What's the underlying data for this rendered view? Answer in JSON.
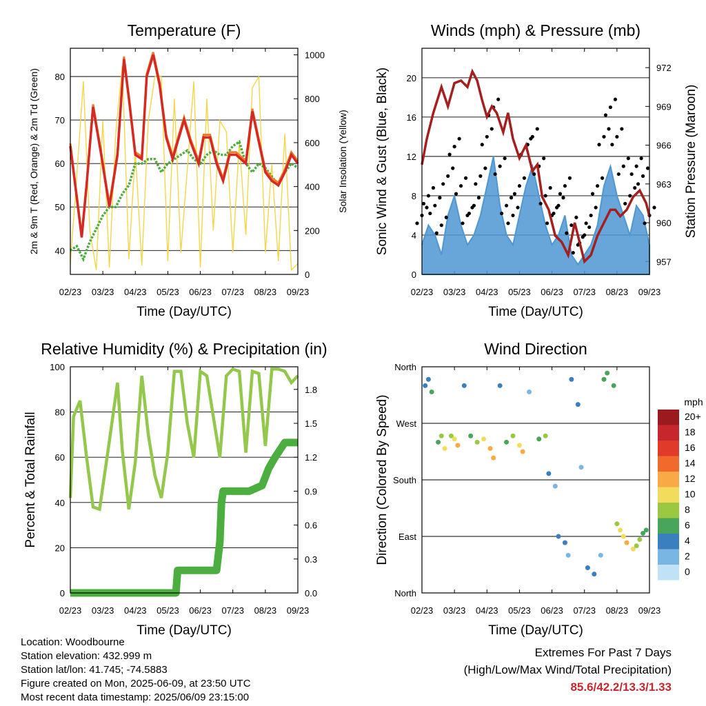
{
  "chart_data": [
    {
      "type": "line",
      "title": "Temperature (F)",
      "xlabel": "Time (Day/UTC)",
      "ylabel": "2m & 9m T (Red, Orange) & 2m Td (Green)",
      "y2label": "Solar Insolation (Yellow)",
      "x_ticks": [
        "02/23",
        "03/23",
        "04/23",
        "05/23",
        "06/23",
        "07/23",
        "08/23",
        "09/23"
      ],
      "xlim": [
        0,
        7
      ],
      "ylim": [
        34.5,
        86.5
      ],
      "y_ticks": [
        40,
        50,
        60,
        70,
        80
      ],
      "y2lim": [
        0,
        1030
      ],
      "y2_ticks": [
        0,
        200,
        400,
        600,
        800,
        1000
      ],
      "grid": true,
      "colors": {
        "t2m": "#d42a23",
        "t9m": "#f07a2a",
        "td": "#4bae3c",
        "solar": "#f4d64a"
      },
      "series": [
        {
          "key": "t2m",
          "x": [
            0,
            0.15,
            0.35,
            0.5,
            0.7,
            0.95,
            1.2,
            1.45,
            1.65,
            1.8,
            2.0,
            2.2,
            2.35,
            2.55,
            2.75,
            2.95,
            3.15,
            3.3,
            3.5,
            3.7,
            3.95,
            4.1,
            4.3,
            4.5,
            4.7,
            4.9,
            5.1,
            5.4,
            5.6,
            5.8,
            6.0,
            6.2,
            6.4,
            6.6,
            6.8,
            7.0
          ],
          "values": [
            64,
            55,
            43,
            55,
            73,
            62,
            50,
            62,
            84,
            75,
            62,
            61,
            80,
            85,
            78,
            66,
            61,
            65,
            70,
            65,
            60,
            66,
            66,
            60,
            56,
            62,
            62,
            60,
            72,
            65,
            58,
            56,
            55,
            58,
            62,
            60
          ]
        },
        {
          "key": "td",
          "x": [
            0,
            0.2,
            0.4,
            0.6,
            0.8,
            1.0,
            1.2,
            1.4,
            1.6,
            1.8,
            2.0,
            2.2,
            2.4,
            2.6,
            2.8,
            3.0,
            3.2,
            3.4,
            3.6,
            3.8,
            4.0,
            4.2,
            4.4,
            4.6,
            4.8,
            5.0,
            5.2,
            5.4,
            5.6,
            5.8,
            6.0,
            6.2,
            6.4,
            6.6,
            6.8,
            7.0
          ],
          "values": [
            40,
            41,
            38,
            42,
            45,
            48,
            50,
            50,
            53,
            55,
            60,
            60,
            61,
            61,
            58,
            60,
            61,
            62,
            63,
            61,
            60,
            62,
            63,
            62,
            62,
            64,
            65,
            60,
            58,
            60,
            59,
            57,
            55,
            58,
            60,
            59
          ]
        },
        {
          "key": "solar",
          "x": [
            0,
            0.2,
            0.4,
            0.6,
            0.8,
            1.0,
            1.2,
            1.4,
            1.6,
            1.8,
            2.0,
            2.2,
            2.4,
            2.6,
            2.8,
            3.0,
            3.2,
            3.4,
            3.6,
            3.8,
            4.0,
            4.2,
            4.4,
            4.6,
            4.8,
            5.0,
            5.2,
            5.4,
            5.6,
            5.8,
            6.0,
            6.2,
            6.4,
            6.6,
            6.8,
            7.0
          ],
          "values": [
            50,
            450,
            880,
            200,
            20,
            700,
            30,
            650,
            950,
            70,
            560,
            40,
            700,
            900,
            900,
            60,
            800,
            100,
            480,
            880,
            30,
            800,
            200,
            700,
            650,
            100,
            600,
            180,
            850,
            900,
            100,
            500,
            60,
            640,
            20,
            50
          ]
        }
      ]
    },
    {
      "type": "line",
      "title": "Winds (mph) & Pressure (mb)",
      "xlabel": "Time (Day/UTC)",
      "ylabel": "Sonic Wind & Gust (Blue, Black)",
      "y2label": "Station Pressure (Maroon)",
      "x_ticks": [
        "02/23",
        "03/23",
        "04/23",
        "05/23",
        "06/23",
        "07/23",
        "08/23",
        "09/23"
      ],
      "xlim": [
        0,
        7
      ],
      "ylim": [
        0,
        23
      ],
      "y_ticks": [
        0,
        4,
        8,
        12,
        16,
        20
      ],
      "y2lim": [
        956,
        973.5
      ],
      "y2_ticks": [
        957,
        960,
        963,
        966,
        969,
        972
      ],
      "grid": true,
      "colors": {
        "wind": "#4d97d4",
        "gust": "#000000",
        "pressure": "#a3201f"
      },
      "series": [
        {
          "key": "wind",
          "x": [
            0,
            0.2,
            0.4,
            0.6,
            0.8,
            1.0,
            1.2,
            1.4,
            1.6,
            1.8,
            2.0,
            2.2,
            2.4,
            2.6,
            2.8,
            3.0,
            3.2,
            3.4,
            3.6,
            3.8,
            4.0,
            4.2,
            4.4,
            4.6,
            4.8,
            5.0,
            5.2,
            5.4,
            5.6,
            5.8,
            6.0,
            6.2,
            6.4,
            6.6,
            6.8,
            7.0
          ],
          "values": [
            3,
            5,
            4,
            2,
            6,
            8,
            5,
            3,
            4,
            6,
            9,
            12,
            7,
            4,
            3,
            6,
            9,
            11,
            8,
            5,
            3,
            4,
            6,
            2,
            1,
            2,
            3,
            5,
            9,
            11,
            8,
            6,
            4,
            7,
            6,
            3
          ]
        },
        {
          "key": "gust",
          "x": [
            0,
            0.2,
            0.4,
            0.6,
            0.8,
            1.0,
            1.2,
            1.4,
            1.6,
            1.8,
            2.0,
            2.2,
            2.4,
            2.6,
            2.8,
            3.0,
            3.2,
            3.4,
            3.6,
            3.8,
            4.0,
            4.2,
            4.4,
            4.6,
            4.8,
            5.0,
            5.2,
            5.4,
            5.6,
            5.8,
            6.0,
            6.2,
            6.4,
            6.6,
            6.8,
            7.0
          ],
          "values": [
            6,
            8,
            7,
            5,
            10,
            13,
            9,
            6,
            7,
            10,
            14,
            17,
            11,
            7,
            6,
            9,
            13,
            14,
            11,
            8,
            6,
            7,
            9,
            5,
            3,
            4,
            6,
            9,
            14,
            17,
            14,
            11,
            8,
            11,
            10,
            6
          ]
        },
        {
          "key": "pressure",
          "x": [
            0,
            0.15,
            0.35,
            0.6,
            0.8,
            1.0,
            1.2,
            1.4,
            1.55,
            1.7,
            1.85,
            2.0,
            2.15,
            2.3,
            2.5,
            2.65,
            2.8,
            3.0,
            3.2,
            3.4,
            3.55,
            3.7,
            3.9,
            4.1,
            4.3,
            4.5,
            4.7,
            4.85,
            5.0,
            5.2,
            5.4,
            5.6,
            5.8,
            5.95,
            6.1,
            6.3,
            6.5,
            6.7,
            6.9,
            7.0
          ],
          "values": [
            964.5,
            966.5,
            968.5,
            970.5,
            969,
            970.8,
            971,
            970.5,
            971.7,
            971,
            969.5,
            968.2,
            969,
            968.5,
            967,
            968.5,
            966.5,
            965,
            966,
            964,
            964.5,
            962,
            961,
            959,
            958.5,
            957.5,
            960,
            958.5,
            957,
            957.5,
            959,
            960,
            961,
            961,
            960.5,
            961,
            962,
            962.5,
            961.5,
            960.5
          ]
        }
      ]
    },
    {
      "type": "line",
      "title": "Relative Humidity (%) & Precipitation (in)",
      "xlabel": "Time (Day/UTC)",
      "ylabel": "Percent & Total Rainfall",
      "x_ticks": [
        "02/23",
        "03/23",
        "04/23",
        "05/23",
        "06/23",
        "07/23",
        "08/23",
        "09/23"
      ],
      "xlim": [
        0,
        7
      ],
      "ylim": [
        0,
        100
      ],
      "y_ticks": [
        0,
        20,
        40,
        60,
        80,
        100
      ],
      "y2lim": [
        0,
        2.0
      ],
      "y2_ticks": [
        0.0,
        0.3,
        0.6,
        0.9,
        1.2,
        1.5,
        1.8
      ],
      "grid": true,
      "colors": {
        "rh": "#94c84c",
        "precip": "#4cae3f"
      },
      "series": [
        {
          "key": "rh",
          "x": [
            0,
            0.1,
            0.3,
            0.5,
            0.7,
            0.9,
            1.2,
            1.45,
            1.6,
            1.8,
            2.0,
            2.2,
            2.4,
            2.6,
            2.8,
            3.0,
            3.2,
            3.4,
            3.6,
            3.8,
            4.0,
            4.2,
            4.4,
            4.6,
            4.8,
            5.0,
            5.2,
            5.4,
            5.6,
            5.8,
            6.0,
            6.2,
            6.4,
            6.6,
            6.8,
            7.0
          ],
          "values": [
            42,
            78,
            85,
            60,
            38,
            37,
            67,
            93,
            63,
            37,
            58,
            96,
            70,
            52,
            42,
            62,
            98,
            98,
            75,
            60,
            98,
            96,
            78,
            60,
            96,
            99,
            98,
            62,
            98,
            97,
            65,
            99,
            99,
            98,
            93,
            96
          ]
        },
        {
          "key": "precip",
          "x": [
            0,
            1.0,
            2.0,
            3.0,
            3.25,
            3.3,
            4.0,
            4.5,
            4.6,
            4.65,
            4.7,
            5.0,
            5.5,
            5.9,
            6.1,
            6.3,
            6.6,
            7.0
          ],
          "values": [
            0,
            0,
            0,
            0,
            0,
            0.2,
            0.2,
            0.2,
            0.45,
            0.8,
            0.9,
            0.9,
            0.9,
            0.95,
            1.1,
            1.2,
            1.33,
            1.33
          ]
        }
      ]
    },
    {
      "type": "scatter",
      "title": "Wind Direction",
      "xlabel": "Time (Day/UTC)",
      "ylabel": "Direction (Colored By Speed)",
      "x_ticks": [
        "02/23",
        "03/23",
        "04/23",
        "05/23",
        "06/23",
        "07/23",
        "08/23",
        "09/23"
      ],
      "xlim": [
        0,
        7
      ],
      "y_ticks": [
        "North",
        "East",
        "South",
        "West",
        "North"
      ],
      "ylim": [
        0,
        360
      ],
      "grid": true,
      "legend": {
        "title": "mph",
        "labels": [
          "20+",
          "18",
          "16",
          "14",
          "12",
          "10",
          "8",
          "6",
          "4",
          "2",
          "0"
        ],
        "colors": [
          "#9b1a1d",
          "#c8262d",
          "#e03a2a",
          "#f06a2c",
          "#f9a945",
          "#f2dc5c",
          "#9bc741",
          "#4aa55c",
          "#3a7fbe",
          "#7ab6e3",
          "#bfe2f6"
        ],
        "placement": "right"
      },
      "series": [
        {
          "name": "",
          "x": [
            0.1,
            0.2,
            0.3,
            0.5,
            0.6,
            0.7,
            0.9,
            1.0,
            1.1,
            1.3,
            1.5,
            1.7,
            1.9,
            2.1,
            2.2,
            2.4,
            2.6,
            2.8,
            3.0,
            3.1,
            3.3,
            3.6,
            3.8,
            3.9,
            4.1,
            4.2,
            4.4,
            4.5,
            4.6,
            4.8,
            4.9,
            5.1,
            5.3,
            5.5,
            5.6,
            5.7,
            5.9,
            6.0,
            6.1,
            6.2,
            6.3,
            6.5,
            6.6,
            6.7,
            6.8,
            6.9
          ],
          "values": [
            330,
            340,
            320,
            240,
            250,
            230,
            250,
            245,
            235,
            330,
            250,
            240,
            245,
            230,
            215,
            330,
            240,
            250,
            235,
            225,
            320,
            245,
            250,
            190,
            170,
            90,
            80,
            60,
            340,
            300,
            200,
            40,
            30,
            60,
            340,
            350,
            330,
            110,
            100,
            90,
            80,
            70,
            75,
            85,
            95,
            100
          ],
          "speeds": [
            3,
            4,
            5,
            6,
            8,
            9,
            7,
            10,
            11,
            3,
            6,
            8,
            9,
            11,
            12,
            3,
            5,
            8,
            10,
            11,
            2,
            5,
            7,
            3,
            2,
            3,
            4,
            2,
            4,
            3,
            1,
            4,
            3,
            2,
            5,
            6,
            5,
            7,
            9,
            10,
            11,
            9,
            8,
            7,
            6,
            5
          ]
        }
      ]
    }
  ],
  "info": {
    "location": "Location: Woodbourne",
    "elevation": "Station elevation: 432.999 m",
    "latlon": "Station lat/lon: 41.745; -74.5883",
    "created": "Figure created on Mon, 2025-06-09, at 23:50 UTC",
    "recent": "Most recent data timestamp: 2025/06/09 23:15:00"
  },
  "extremes": {
    "title": "Extremes For Past 7 Days",
    "subtitle": "(High/Low/Max Wind/Total Precipitation)",
    "values": "85.6/42.2/13.3/1.33"
  }
}
